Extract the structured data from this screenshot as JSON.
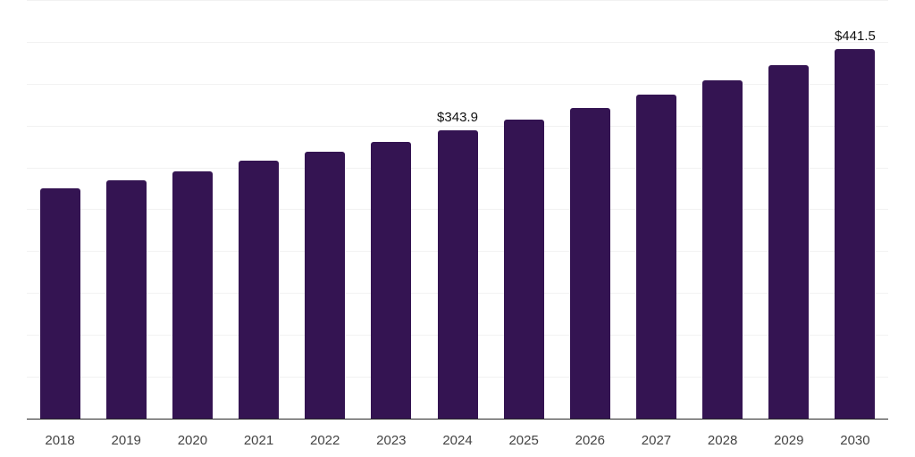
{
  "chart_data": {
    "type": "bar",
    "title": "",
    "xlabel": "",
    "ylabel": "",
    "categories": [
      "2018",
      "2019",
      "2020",
      "2021",
      "2022",
      "2023",
      "2024",
      "2025",
      "2026",
      "2027",
      "2028",
      "2029",
      "2030"
    ],
    "values": [
      275.4,
      284.9,
      295.3,
      307.7,
      319.1,
      330.7,
      343.9,
      357.1,
      371.4,
      387.1,
      404.5,
      422.4,
      441.5
    ],
    "data_labels": {
      "2024": "$343.9",
      "2030": "$441.5"
    },
    "ylim": [
      0,
      500
    ],
    "grid_step": 50,
    "grid": true,
    "legend": false,
    "colors": {
      "bar": "#341452",
      "gridline": "#f2f2f2",
      "axis_line": "#262626",
      "tick_label": "#444444",
      "data_label": "#111111"
    }
  }
}
